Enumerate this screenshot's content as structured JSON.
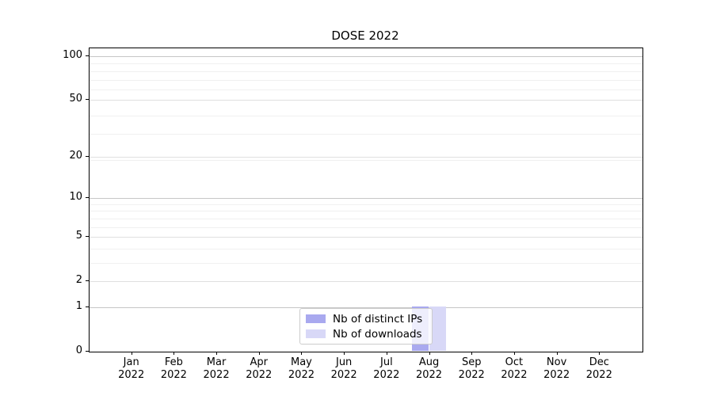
{
  "title": "DOSE 2022",
  "legend": {
    "items": [
      {
        "label": "Nb of distinct IPs",
        "color": "#a9a9ef"
      },
      {
        "label": "Nb of downloads",
        "color": "#d8d8f7"
      }
    ],
    "position": "lower center"
  },
  "colors": {
    "distinct_ips": "#a9a9ef",
    "downloads": "#d8d8f7",
    "grid_major": "#c6c6c6",
    "grid_mid": "#e0e0e0",
    "grid_minor": "#f0f0f0",
    "axis": "#000000",
    "background": "#ffffff"
  },
  "chart_data": {
    "type": "bar",
    "title": "DOSE 2022",
    "xlabel": "",
    "ylabel": "",
    "categories": [
      "Jan",
      "Feb",
      "Mar",
      "Apr",
      "May",
      "Jun",
      "Jul",
      "Aug",
      "Sep",
      "Oct",
      "Nov",
      "Dec"
    ],
    "category_year": "2022",
    "series": [
      {
        "name": "Nb of distinct IPs",
        "color": "#a9a9ef",
        "values": [
          0,
          0,
          0,
          0,
          0,
          0,
          0,
          1,
          0,
          0,
          0,
          0
        ]
      },
      {
        "name": "Nb of downloads",
        "color": "#d8d8f7",
        "values": [
          0,
          0,
          0,
          0,
          0,
          0,
          0,
          1,
          0,
          0,
          0,
          0
        ]
      }
    ],
    "y_axis": {
      "scale": "log1p",
      "ylim": [
        0,
        100
      ],
      "ticks": [
        0,
        1,
        2,
        5,
        10,
        20,
        50,
        100
      ],
      "decade_gridlines": [
        1,
        10,
        100
      ],
      "mid_gridlines": [
        2,
        5,
        20,
        50
      ],
      "minor_gridlines": [
        3,
        4,
        6,
        7,
        8,
        9,
        19,
        29,
        39,
        59,
        69,
        79,
        89
      ]
    },
    "grid": true,
    "legend_position": "lower center"
  }
}
